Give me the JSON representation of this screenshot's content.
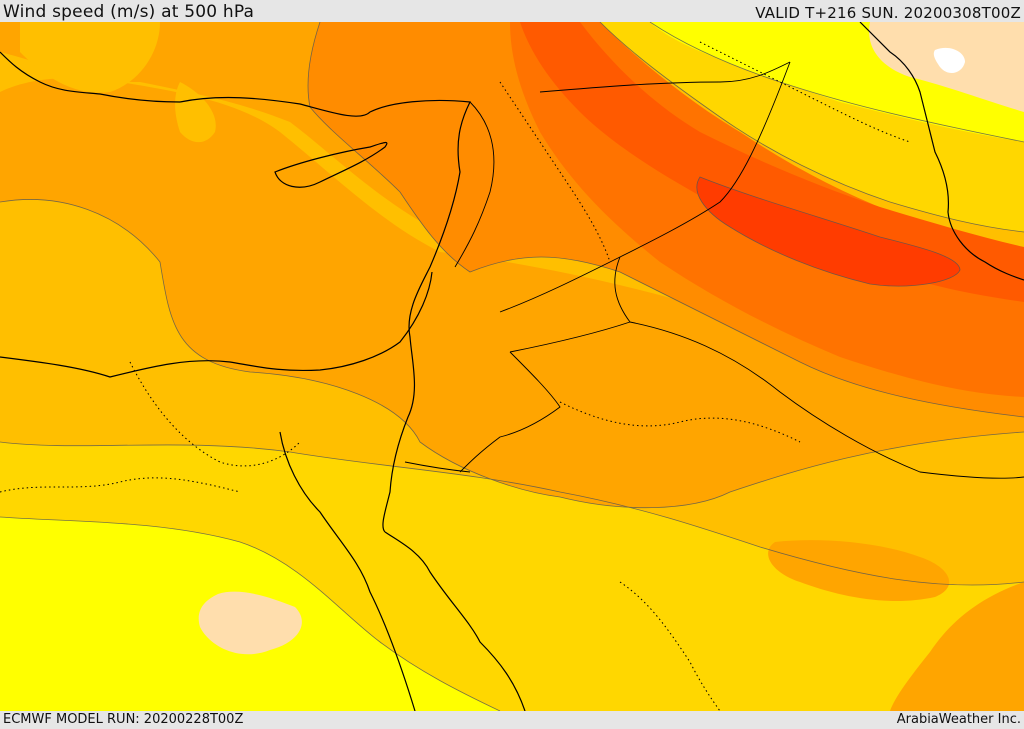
{
  "header": {
    "title": "Wind speed (m/s) at 500 hPa",
    "valid": "VALID T+216 SUN. 20200308T00Z"
  },
  "footer": {
    "model_run": "ECMWF MODEL RUN: 20200228T00Z",
    "credit": "ArabiaWeather Inc."
  },
  "map": {
    "field": "Wind speed",
    "units": "m/s",
    "level": "500 hPa",
    "palette": {
      "band_0": "#ffdead",
      "band_1": "#ffff00",
      "band_2": "#ffd700",
      "band_3": "#ffbf00",
      "band_4": "#ffa500",
      "band_5": "#ff8c00",
      "band_6": "#ff7300",
      "band_7": "#ff5a00",
      "band_8": "#ff3c00",
      "water_gap": "#ffffff"
    }
  }
}
